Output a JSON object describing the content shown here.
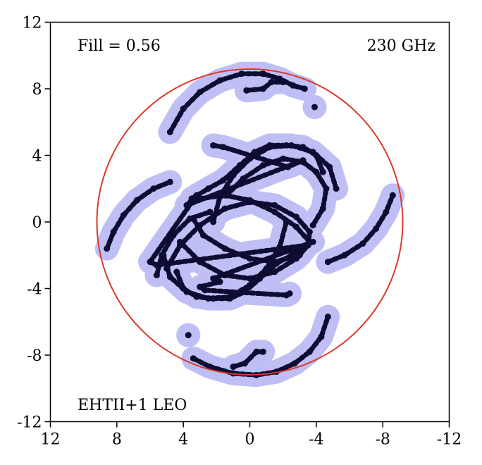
{
  "chart_data": {
    "type": "scatter",
    "title": "",
    "xlabel": "",
    "ylabel": "",
    "xlim": [
      12,
      -12
    ],
    "ylim": [
      -12,
      12
    ],
    "x_ticks": [
      12,
      8,
      4,
      0,
      -4,
      -8,
      -12
    ],
    "y_ticks": [
      12,
      8,
      4,
      0,
      -4,
      -8,
      -12
    ],
    "x_tick_labels": [
      "12",
      "8",
      "4",
      "0",
      "-4",
      "-8",
      "-12"
    ],
    "y_tick_labels": [
      "12",
      "8",
      "4",
      "0",
      "-4",
      "-8",
      "-12"
    ],
    "grid": false,
    "annotations": {
      "top_left": "Fill = 0.56",
      "top_right": "230 GHz",
      "bottom_left": "EHTII+1 LEO"
    },
    "colors": {
      "track": "#0d0d33",
      "halo": "#bfbff5",
      "circle": "#d93a2b"
    },
    "reference_circle": {
      "center": [
        0,
        0
      ],
      "radius": 9.2
    },
    "halo_radius": 0.55,
    "series": [
      {
        "arc": "outer-top-big",
        "points": [
          [
            4.8,
            5.4
          ],
          [
            4.0,
            6.8
          ],
          [
            3.0,
            7.8
          ],
          [
            1.8,
            8.5
          ],
          [
            0.5,
            8.9
          ],
          [
            -0.8,
            8.9
          ],
          [
            -1.8,
            8.6
          ],
          [
            -2.6,
            8.2
          ],
          [
            -3.3,
            8.0
          ]
        ]
      },
      {
        "arc": "outer-top-small",
        "points": [
          [
            0.2,
            7.9
          ],
          [
            -0.8,
            8.0
          ],
          [
            -1.3,
            8.4
          ],
          [
            -2.0,
            8.4
          ]
        ]
      },
      {
        "arc": "top-blob",
        "points": [
          [
            -3.9,
            6.9
          ]
        ]
      },
      {
        "arc": "outer-bottom-big",
        "points": [
          [
            3.4,
            -8.2
          ],
          [
            2.4,
            -8.7
          ],
          [
            1.0,
            -9.1
          ],
          [
            -0.4,
            -9.2
          ],
          [
            -1.6,
            -9.0
          ],
          [
            -2.7,
            -8.5
          ],
          [
            -3.6,
            -7.8
          ],
          [
            -4.3,
            -6.9
          ],
          [
            -4.7,
            -5.7
          ]
        ]
      },
      {
        "arc": "outer-bottom-small",
        "points": [
          [
            1.0,
            -8.7
          ],
          [
            0.3,
            -8.5
          ],
          [
            -0.4,
            -7.8
          ],
          [
            -0.8,
            -7.8
          ]
        ]
      },
      {
        "arc": "bottom-blob",
        "points": [
          [
            3.7,
            -6.8
          ]
        ]
      },
      {
        "arc": "left-big",
        "points": [
          [
            8.6,
            -1.6
          ],
          [
            8.2,
            -0.6
          ],
          [
            7.6,
            0.4
          ],
          [
            6.8,
            1.3
          ],
          [
            5.8,
            2.0
          ],
          [
            4.8,
            2.4
          ]
        ]
      },
      {
        "arc": "right-big",
        "points": [
          [
            -4.7,
            -2.4
          ],
          [
            -5.7,
            -2.0
          ],
          [
            -6.8,
            -1.3
          ],
          [
            -7.6,
            -0.4
          ],
          [
            -8.2,
            0.6
          ],
          [
            -8.6,
            1.6
          ]
        ]
      },
      {
        "arc": "mid-ellipse-a",
        "points": [
          [
            5.0,
            -2.8
          ],
          [
            4.2,
            -1.4
          ],
          [
            3.0,
            -0.2
          ],
          [
            1.5,
            0.8
          ],
          [
            0.0,
            1.2
          ],
          [
            -1.5,
            1.0
          ],
          [
            -2.8,
            0.3
          ],
          [
            -3.6,
            -0.6
          ],
          [
            -3.5,
            -1.4
          ],
          [
            -2.8,
            -2.2
          ],
          [
            -1.5,
            -3.0
          ],
          [
            0.0,
            -3.4
          ],
          [
            1.5,
            -3.2
          ],
          [
            3.0,
            -2.4
          ],
          [
            4.2,
            -1.2
          ]
        ]
      },
      {
        "arc": "mid-ellipse-b",
        "points": [
          [
            3.0,
            1.4
          ],
          [
            1.5,
            1.6
          ],
          [
            0.0,
            1.3
          ],
          [
            -1.5,
            0.6
          ],
          [
            -2.8,
            -0.3
          ],
          [
            -3.6,
            -1.2
          ],
          [
            -3.0,
            -2.0
          ],
          [
            -1.5,
            -2.4
          ],
          [
            0.0,
            -2.2
          ],
          [
            1.5,
            -1.6
          ],
          [
            2.8,
            -0.8
          ],
          [
            3.4,
            0.2
          ]
        ]
      },
      {
        "arc": "upper-arc",
        "points": [
          [
            2.2,
            0.0
          ],
          [
            1.8,
            1.5
          ],
          [
            1.0,
            2.8
          ],
          [
            0.0,
            3.8
          ],
          [
            -1.2,
            4.5
          ],
          [
            -2.5,
            4.6
          ],
          [
            -3.8,
            4.2
          ],
          [
            -4.8,
            3.3
          ],
          [
            -5.2,
            2.0
          ]
        ]
      },
      {
        "arc": "upper-arc-inner",
        "points": [
          [
            1.4,
            1.6
          ],
          [
            0.4,
            2.6
          ],
          [
            -0.8,
            3.4
          ],
          [
            -2.0,
            3.8
          ],
          [
            -3.2,
            3.6
          ],
          [
            -4.0,
            3.0
          ],
          [
            -4.6,
            2.0
          ],
          [
            -4.4,
            0.8
          ],
          [
            -3.8,
            -0.2
          ]
        ]
      },
      {
        "arc": "upper-diagonal",
        "points": [
          [
            3.5,
            1.4
          ],
          [
            2.5,
            2.0
          ],
          [
            1.6,
            2.5
          ],
          [
            0.6,
            3.4
          ],
          [
            -0.3,
            4.2
          ],
          [
            -1.2,
            4.6
          ],
          [
            -2.2,
            4.6
          ],
          [
            -3.2,
            4.5
          ],
          [
            -4.0,
            4.0
          ],
          [
            -4.4,
            3.0
          ]
        ]
      },
      {
        "arc": "lower-arc",
        "points": [
          [
            5.6,
            -3.2
          ],
          [
            5.3,
            -2.0
          ],
          [
            4.6,
            -0.8
          ],
          [
            3.6,
            0.2
          ],
          [
            2.4,
            0.6
          ]
        ]
      },
      {
        "arc": "lower-arc-2",
        "points": [
          [
            -2.2,
            0.0
          ],
          [
            -1.8,
            -1.5
          ],
          [
            -1.0,
            -2.8
          ],
          [
            0.0,
            -3.8
          ],
          [
            1.2,
            -4.5
          ],
          [
            2.5,
            -4.6
          ],
          [
            3.8,
            -4.2
          ],
          [
            4.8,
            -3.3
          ],
          [
            5.2,
            -2.0
          ]
        ]
      },
      {
        "arc": "lower-diagonal",
        "points": [
          [
            -3.5,
            -1.4
          ],
          [
            -2.5,
            -2.0
          ],
          [
            -1.6,
            -2.5
          ],
          [
            -0.6,
            -3.4
          ],
          [
            0.3,
            -4.2
          ],
          [
            1.2,
            -4.6
          ],
          [
            2.2,
            -4.6
          ],
          [
            3.2,
            -4.5
          ],
          [
            4.0,
            -4.0
          ],
          [
            4.4,
            -3.0
          ]
        ]
      },
      {
        "arc": "small-blobs",
        "points": [
          [
            2.2,
            4.6
          ],
          [
            1.6,
            4.5
          ],
          [
            -2.3,
            3.3
          ],
          [
            -3.2,
            3.7
          ],
          [
            3.8,
            1.0
          ],
          [
            3.2,
            1.6
          ],
          [
            6.0,
            -2.4
          ],
          [
            5.6,
            -2.6
          ],
          [
            -3.4,
            -1.4
          ],
          [
            -3.8,
            -1.2
          ],
          [
            2.2,
            -3.4
          ],
          [
            1.8,
            -3.6
          ],
          [
            3.0,
            -3.9
          ],
          [
            2.7,
            -4.1
          ],
          [
            -2.2,
            -4.4
          ],
          [
            -2.4,
            -4.3
          ]
        ]
      }
    ]
  }
}
